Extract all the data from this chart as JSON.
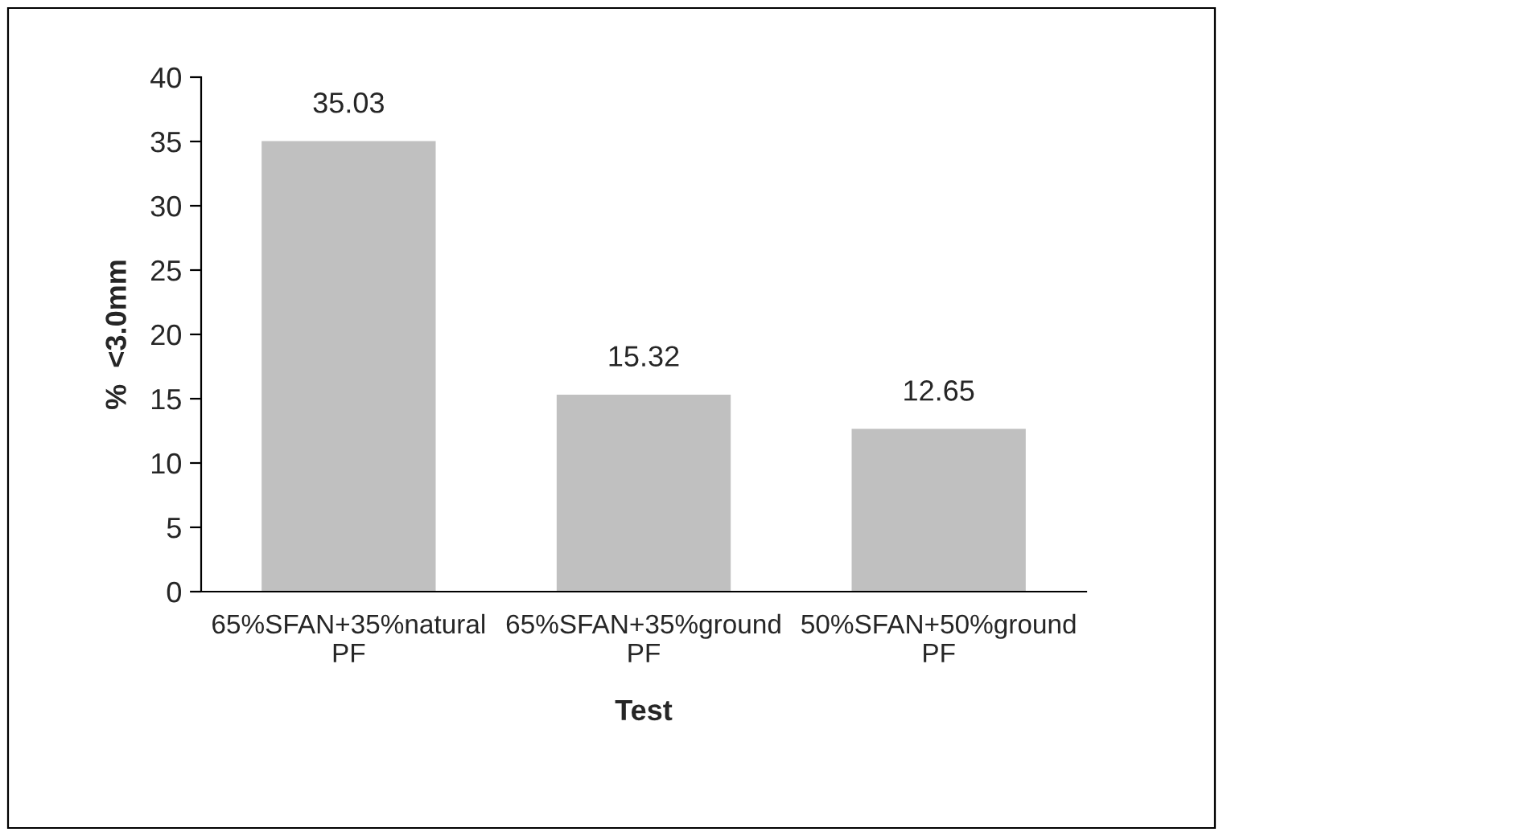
{
  "chart_data": {
    "type": "bar",
    "xlabel": "Test",
    "ylabel": "%  <3.0mm",
    "categories": [
      "65%SFAN+35%natural PF",
      "65%SFAN+35%ground PF",
      "50%SFAN+50%ground PF"
    ],
    "values": [
      35.03,
      15.32,
      12.65
    ],
    "color": "#c0c0c0",
    "ylim": [
      0,
      40
    ],
    "yticks": [
      0,
      5,
      10,
      15,
      20,
      25,
      30,
      35,
      40
    ],
    "data_labels": true,
    "grid": false,
    "legend": false
  }
}
